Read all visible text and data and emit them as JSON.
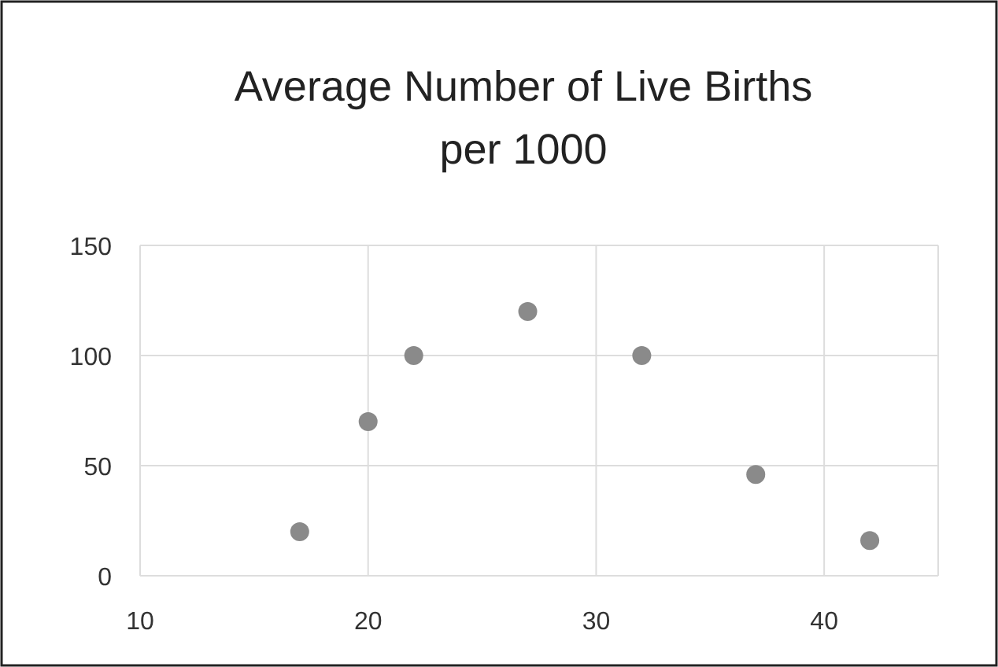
{
  "chart_data": {
    "type": "scatter",
    "title": "Average Number of Live Births per 1000",
    "x": [
      17,
      20,
      22,
      27,
      32,
      37,
      42
    ],
    "values": [
      20,
      70,
      100,
      120,
      100,
      46,
      16
    ],
    "color": "#8a8a8a",
    "xlim": [
      10,
      45
    ],
    "xticks": [
      10,
      20,
      30,
      40
    ],
    "ylim": [
      0,
      150
    ],
    "yticks": [
      0,
      50,
      100,
      150
    ],
    "grid": true,
    "marker": "circle"
  }
}
